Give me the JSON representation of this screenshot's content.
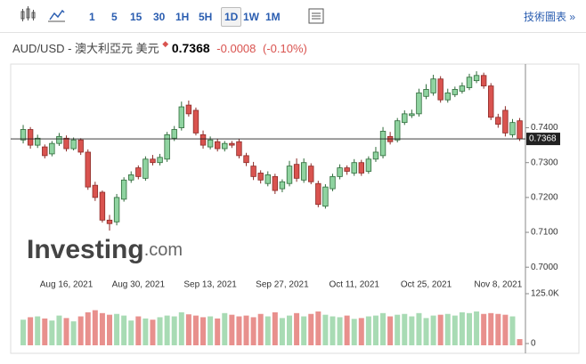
{
  "toolbar": {
    "intervals": [
      "1",
      "5",
      "15",
      "30",
      "1H",
      "5H",
      "1D",
      "1W",
      "1M"
    ],
    "active": "1D",
    "link": "技術圖表 »"
  },
  "header": {
    "symbol": "AUD/USD - 澳大利亞元 美元",
    "price": "0.7368",
    "change": "-0.0008",
    "change_pct": "(-0.10%)"
  },
  "chart_data": {
    "type": "candlestick",
    "brand": "Investing",
    "brand_suffix": ".com",
    "categories": [
      null,
      null,
      null,
      null,
      null,
      null,
      "Aug 16, 2021",
      null,
      null,
      null,
      null,
      null,
      null,
      null,
      null,
      null,
      "Aug 30, 2021",
      null,
      null,
      null,
      null,
      null,
      null,
      null,
      null,
      null,
      "Sep 13, 2021",
      null,
      null,
      null,
      null,
      null,
      null,
      null,
      null,
      null,
      "Sep 27, 2021",
      null,
      null,
      null,
      null,
      null,
      null,
      null,
      null,
      null,
      "Oct 11, 2021",
      null,
      null,
      null,
      null,
      null,
      null,
      null,
      null,
      null,
      "Oct 25, 2021",
      null,
      null,
      null,
      null,
      null,
      null,
      null,
      null,
      null,
      "Nov 8, 2021",
      null,
      null,
      null
    ],
    "open": [
      0.7365,
      0.7395,
      0.735,
      0.7345,
      0.7325,
      0.7355,
      0.737,
      0.734,
      0.7365,
      0.733,
      0.7235,
      0.7215,
      0.7135,
      0.713,
      0.7195,
      0.725,
      0.7285,
      0.7255,
      0.731,
      0.73,
      0.731,
      0.737,
      0.74,
      0.7465,
      0.745,
      0.738,
      0.7345,
      0.736,
      0.734,
      0.7355,
      0.736,
      0.732,
      0.729,
      0.727,
      0.724,
      0.726,
      0.7225,
      0.724,
      0.7295,
      0.725,
      0.729,
      0.724,
      0.7175,
      0.7225,
      0.726,
      0.7285,
      0.727,
      0.73,
      0.7275,
      0.731,
      0.732,
      0.7375,
      0.7365,
      0.7415,
      0.7435,
      0.744,
      0.749,
      0.75,
      0.754,
      0.748,
      0.7495,
      0.7505,
      0.7515,
      0.7535,
      0.755,
      0.752,
      0.743,
      0.745,
      0.738,
      0.742
    ],
    "high": [
      0.7408,
      0.7402,
      0.738,
      0.7352,
      0.7362,
      0.7385,
      0.7378,
      0.7372,
      0.737,
      0.7338,
      0.7245,
      0.722,
      0.715,
      0.721,
      0.7258,
      0.7275,
      0.7292,
      0.7318,
      0.7322,
      0.7325,
      0.7388,
      0.7405,
      0.7475,
      0.7478,
      0.7458,
      0.7392,
      0.7375,
      0.7368,
      0.7362,
      0.7362,
      0.7368,
      0.7328,
      0.7302,
      0.7278,
      0.7275,
      0.7268,
      0.7252,
      0.7305,
      0.7312,
      0.7312,
      0.7298,
      0.7248,
      0.7238,
      0.7268,
      0.7295,
      0.7292,
      0.731,
      0.7308,
      0.7318,
      0.7345,
      0.7402,
      0.7388,
      0.7428,
      0.745,
      0.7452,
      0.7512,
      0.7525,
      0.7552,
      0.7548,
      0.7512,
      0.7518,
      0.753,
      0.7555,
      0.7562,
      0.7558,
      0.7528,
      0.744,
      0.7462,
      0.7425,
      0.7428
    ],
    "low": [
      0.7355,
      0.734,
      0.7342,
      0.7312,
      0.7318,
      0.7348,
      0.7332,
      0.7335,
      0.7322,
      0.7222,
      0.719,
      0.7128,
      0.7105,
      0.712,
      0.7188,
      0.7242,
      0.7252,
      0.7248,
      0.7292,
      0.7292,
      0.7302,
      0.7362,
      0.7392,
      0.7432,
      0.7378,
      0.734,
      0.7338,
      0.7332,
      0.7332,
      0.7342,
      0.7312,
      0.729,
      0.725,
      0.724,
      0.7232,
      0.721,
      0.7215,
      0.7232,
      0.7245,
      0.7242,
      0.7238,
      0.7172,
      0.7168,
      0.7218,
      0.7252,
      0.7265,
      0.7262,
      0.7262,
      0.7268,
      0.7302,
      0.7312,
      0.7352,
      0.7358,
      0.7408,
      0.7428,
      0.7432,
      0.7482,
      0.7492,
      0.7472,
      0.7472,
      0.7488,
      0.7498,
      0.7508,
      0.7528,
      0.7512,
      0.7422,
      0.74,
      0.7375,
      0.7372,
      0.7362
    ],
    "close": [
      0.7395,
      0.735,
      0.737,
      0.732,
      0.7355,
      0.7375,
      0.734,
      0.7365,
      0.733,
      0.723,
      0.72,
      0.7135,
      0.7125,
      0.72,
      0.725,
      0.7265,
      0.726,
      0.731,
      0.73,
      0.7315,
      0.738,
      0.7395,
      0.746,
      0.744,
      0.7385,
      0.735,
      0.7365,
      0.734,
      0.7355,
      0.735,
      0.732,
      0.73,
      0.726,
      0.725,
      0.7265,
      0.722,
      0.7245,
      0.729,
      0.7255,
      0.73,
      0.7245,
      0.718,
      0.723,
      0.726,
      0.7285,
      0.7275,
      0.73,
      0.727,
      0.731,
      0.733,
      0.739,
      0.736,
      0.742,
      0.744,
      0.744,
      0.75,
      0.751,
      0.754,
      0.748,
      0.75,
      0.751,
      0.752,
      0.7545,
      0.755,
      0.752,
      0.743,
      0.741,
      0.7385,
      0.7415,
      0.7368
    ],
    "volume": [
      62000,
      68000,
      70000,
      65000,
      60000,
      72000,
      66000,
      58000,
      70000,
      80000,
      85000,
      78000,
      74000,
      76000,
      72000,
      60000,
      70000,
      65000,
      62000,
      68000,
      72000,
      70000,
      80000,
      75000,
      72000,
      68000,
      70000,
      65000,
      78000,
      74000,
      70000,
      72000,
      68000,
      76000,
      70000,
      80000,
      66000,
      72000,
      78000,
      70000,
      76000,
      82000,
      74000,
      70000,
      68000,
      72000,
      64000,
      66000,
      70000,
      72000,
      78000,
      70000,
      74000,
      76000,
      70000,
      78000,
      66000,
      72000,
      74000,
      76000,
      72000,
      80000,
      78000,
      82000,
      76000,
      78000,
      76000,
      74000,
      70000,
      15000
    ],
    "ylim": [
      0.6975,
      0.7575
    ],
    "yticks": [
      {
        "value": 0.7,
        "label": "0.7000"
      },
      {
        "value": 0.71,
        "label": "0.7100"
      },
      {
        "value": 0.72,
        "label": "0.7200"
      },
      {
        "value": 0.73,
        "label": "0.7300"
      },
      {
        "value": 0.74,
        "label": "0.7400"
      }
    ],
    "volume_ylim": [
      0,
      125000
    ],
    "volume_ticks": [
      0,
      {
        "value": 125000,
        "label": "125.0K"
      }
    ],
    "up_color": "#8fd3a0",
    "down_color": "#d9534f",
    "up_border": "#2e6b3a",
    "down_border": "#8c2a27",
    "volume_up_color": "#a8dbb4",
    "volume_down_color": "#e8908d"
  }
}
